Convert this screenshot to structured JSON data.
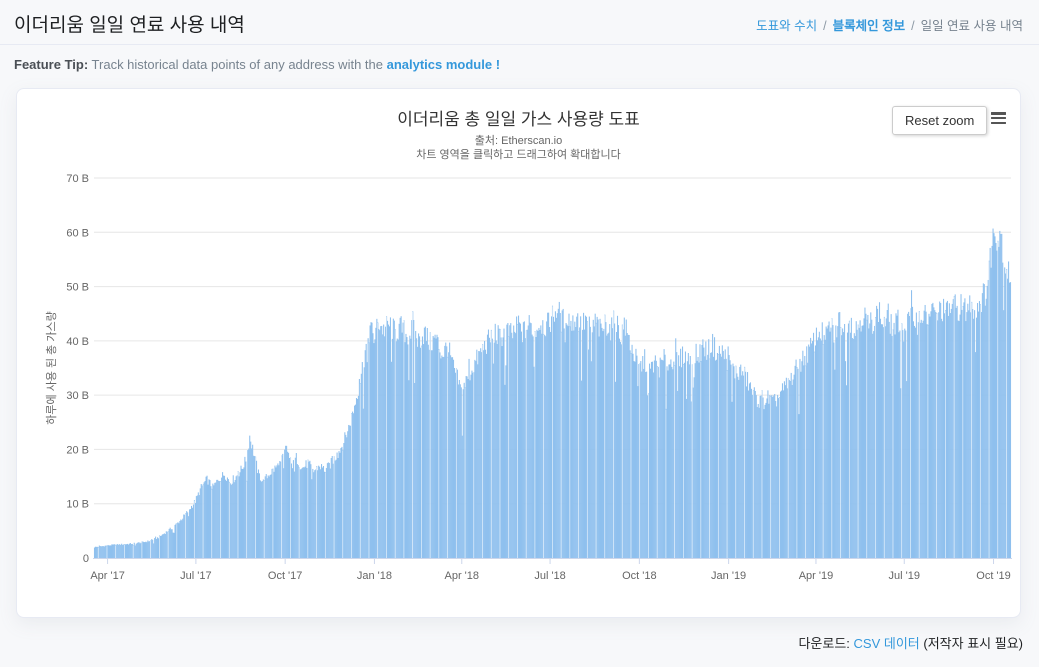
{
  "colors": {
    "accent_link": "#3498db",
    "bar_fill": "#8fc0ee",
    "bar_base": "#7cb5ec",
    "grid": "#e6e6e6",
    "axis_line": "#ccd6eb",
    "page_bg": "#f7f8fa",
    "border": "#e7eaf3"
  },
  "header": {
    "title": "이더리움 일일 연료 사용 내역"
  },
  "breadcrumb": {
    "separator": "/",
    "items": [
      {
        "label": "도표와 수치",
        "type": "link"
      },
      {
        "label": "블록체인 정보",
        "type": "link-strong"
      },
      {
        "label": "일일 연료 사용 내역",
        "type": "current"
      }
    ]
  },
  "feature_tip": {
    "label": "Feature Tip:",
    "text": " Track historical data points of any address with the ",
    "link": "analytics module !"
  },
  "chart_controls": {
    "reset_zoom_label": "Reset zoom"
  },
  "footer": {
    "prefix": "다운로드:",
    "link_label": "CSV 데이터",
    "suffix": "(저작자 표시 필요)"
  },
  "chart_data": {
    "type": "bar",
    "title": "이더리움 총 일일 가스 사용량 도표",
    "subtitle_source": "출처: Etherscan.io",
    "subtitle_hint": "차트 영역을 클릭하고 드래그하여 확대합니다",
    "xlabel": "",
    "ylabel": "하루에 사용 된 총 가스량",
    "unit": "billion gas per day",
    "ylim": [
      0,
      70
    ],
    "grid": true,
    "legend": "none",
    "yticks": [
      {
        "value": 0,
        "label": "0"
      },
      {
        "value": 10,
        "label": "10 B"
      },
      {
        "value": 20,
        "label": "20 B"
      },
      {
        "value": 30,
        "label": "30 B"
      },
      {
        "value": 40,
        "label": "40 B"
      },
      {
        "value": 50,
        "label": "50 B"
      },
      {
        "value": 60,
        "label": "60 B"
      },
      {
        "value": 70,
        "label": "70 B"
      }
    ],
    "xticks": [
      {
        "day": 14,
        "label": "Apr '17"
      },
      {
        "day": 105,
        "label": "Jul '17"
      },
      {
        "day": 197,
        "label": "Oct '17"
      },
      {
        "day": 289,
        "label": "Jan '18"
      },
      {
        "day": 379,
        "label": "Apr '18"
      },
      {
        "day": 470,
        "label": "Jul '18"
      },
      {
        "day": 562,
        "label": "Oct '18"
      },
      {
        "day": 654,
        "label": "Jan '19"
      },
      {
        "day": 744,
        "label": "Apr '19"
      },
      {
        "day": 835,
        "label": "Jul '19"
      },
      {
        "day": 927,
        "label": "Oct '19"
      }
    ],
    "total_days": 945,
    "noise_amplitude": 0.055,
    "anchors": [
      [
        0,
        2.0
      ],
      [
        18,
        2.4
      ],
      [
        36,
        2.6
      ],
      [
        50,
        2.9
      ],
      [
        58,
        3.2
      ],
      [
        66,
        3.8
      ],
      [
        74,
        4.8
      ],
      [
        82,
        5.8
      ],
      [
        90,
        7.2
      ],
      [
        98,
        9.0
      ],
      [
        104,
        10.5
      ],
      [
        110,
        13.0
      ],
      [
        116,
        14.5
      ],
      [
        122,
        13.0
      ],
      [
        128,
        14.5
      ],
      [
        134,
        15.5
      ],
      [
        140,
        14.0
      ],
      [
        146,
        15.0
      ],
      [
        152,
        16.5
      ],
      [
        157,
        18.5
      ],
      [
        160,
        22.5
      ],
      [
        164,
        19.5
      ],
      [
        169,
        15.5
      ],
      [
        174,
        14.0
      ],
      [
        180,
        15.5
      ],
      [
        186,
        16.5
      ],
      [
        192,
        17.5
      ],
      [
        198,
        20.5
      ],
      [
        203,
        17.0
      ],
      [
        208,
        18.5
      ],
      [
        214,
        16.5
      ],
      [
        220,
        17.5
      ],
      [
        226,
        16.0
      ],
      [
        232,
        17.0
      ],
      [
        238,
        16.2
      ],
      [
        244,
        17.5
      ],
      [
        250,
        19.0
      ],
      [
        256,
        21.0
      ],
      [
        262,
        24.0
      ],
      [
        268,
        28.0
      ],
      [
        274,
        33.0
      ],
      [
        279,
        38.0
      ],
      [
        284,
        42.5
      ],
      [
        288,
        40.5
      ],
      [
        293,
        43.5
      ],
      [
        298,
        42.0
      ],
      [
        304,
        43.0
      ],
      [
        310,
        41.5
      ],
      [
        316,
        42.5
      ],
      [
        322,
        41.0
      ],
      [
        328,
        42.0
      ],
      [
        334,
        40.0
      ],
      [
        340,
        41.5
      ],
      [
        346,
        39.5
      ],
      [
        352,
        40.5
      ],
      [
        358,
        37.5
      ],
      [
        364,
        39.0
      ],
      [
        370,
        35.0
      ],
      [
        375,
        32.5
      ],
      [
        379,
        30.0
      ],
      [
        383,
        32.5
      ],
      [
        388,
        34.5
      ],
      [
        394,
        36.5
      ],
      [
        400,
        38.5
      ],
      [
        406,
        40.0
      ],
      [
        412,
        41.5
      ],
      [
        418,
        40.5
      ],
      [
        424,
        42.0
      ],
      [
        430,
        41.0
      ],
      [
        436,
        42.5
      ],
      [
        442,
        41.5
      ],
      [
        448,
        43.0
      ],
      [
        454,
        42.0
      ],
      [
        460,
        43.5
      ],
      [
        466,
        42.5
      ],
      [
        472,
        44.5
      ],
      [
        477,
        46.0
      ],
      [
        482,
        43.5
      ],
      [
        487,
        45.0
      ],
      [
        492,
        43.0
      ],
      [
        497,
        44.5
      ],
      [
        502,
        42.5
      ],
      [
        507,
        44.0
      ],
      [
        512,
        42.0
      ],
      [
        517,
        43.5
      ],
      [
        522,
        41.5
      ],
      [
        527,
        43.5
      ],
      [
        532,
        42.0
      ],
      [
        537,
        44.0
      ],
      [
        542,
        41.0
      ],
      [
        547,
        42.5
      ],
      [
        552,
        39.5
      ],
      [
        557,
        37.0
      ],
      [
        562,
        35.0
      ],
      [
        567,
        36.5
      ],
      [
        572,
        34.5
      ],
      [
        577,
        36.0
      ],
      [
        582,
        35.0
      ],
      [
        587,
        36.5
      ],
      [
        592,
        35.5
      ],
      [
        597,
        37.0
      ],
      [
        602,
        36.0
      ],
      [
        607,
        37.5
      ],
      [
        612,
        36.5
      ],
      [
        617,
        38.0
      ],
      [
        622,
        37.0
      ],
      [
        627,
        39.0
      ],
      [
        632,
        38.0
      ],
      [
        637,
        39.5
      ],
      [
        642,
        37.5
      ],
      [
        647,
        38.0
      ],
      [
        652,
        36.5
      ],
      [
        657,
        35.0
      ],
      [
        662,
        34.0
      ],
      [
        667,
        34.5
      ],
      [
        672,
        33.0
      ],
      [
        677,
        31.0
      ],
      [
        682,
        29.5
      ],
      [
        688,
        28.5
      ],
      [
        694,
        29.5
      ],
      [
        700,
        28.5
      ],
      [
        706,
        30.0
      ],
      [
        712,
        31.5
      ],
      [
        718,
        33.0
      ],
      [
        724,
        35.0
      ],
      [
        730,
        36.5
      ],
      [
        736,
        38.0
      ],
      [
        742,
        40.0
      ],
      [
        748,
        42.0
      ],
      [
        753,
        40.0
      ],
      [
        758,
        43.0
      ],
      [
        763,
        41.0
      ],
      [
        768,
        44.0
      ],
      [
        773,
        42.0
      ],
      [
        778,
        44.5
      ],
      [
        783,
        41.5
      ],
      [
        788,
        43.5
      ],
      [
        793,
        45.0
      ],
      [
        798,
        42.5
      ],
      [
        803,
        44.0
      ],
      [
        808,
        45.5
      ],
      [
        813,
        43.0
      ],
      [
        818,
        44.5
      ],
      [
        823,
        42.0
      ],
      [
        828,
        43.5
      ],
      [
        833,
        41.5
      ],
      [
        838,
        43.0
      ],
      [
        843,
        45.0
      ],
      [
        848,
        43.5
      ],
      [
        853,
        45.0
      ],
      [
        858,
        44.0
      ],
      [
        863,
        45.5
      ],
      [
        868,
        44.5
      ],
      [
        873,
        46.0
      ],
      [
        878,
        45.0
      ],
      [
        883,
        46.5
      ],
      [
        888,
        45.5
      ],
      [
        893,
        46.5
      ],
      [
        898,
        45.5
      ],
      [
        903,
        47.0
      ],
      [
        908,
        46.0
      ],
      [
        913,
        47.5
      ],
      [
        917,
        48.5
      ],
      [
        920,
        50.0
      ],
      [
        923,
        55.0
      ],
      [
        926,
        59.0
      ],
      [
        929,
        61.0
      ],
      [
        931,
        58.5
      ],
      [
        933,
        61.0
      ],
      [
        936,
        57.5
      ],
      [
        939,
        54.0
      ],
      [
        942,
        52.5
      ],
      [
        944,
        52.0
      ]
    ]
  }
}
